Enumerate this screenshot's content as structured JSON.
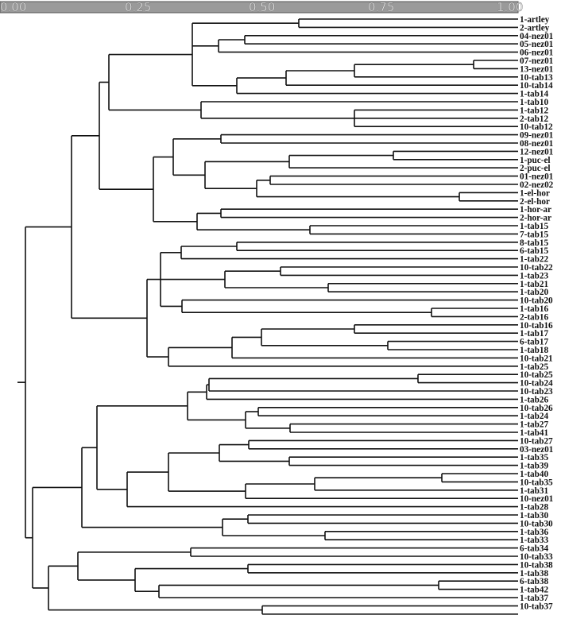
{
  "scale": {
    "ticks": [
      "0.00",
      "0.25",
      "0.50",
      "0.75",
      "1.00"
    ]
  },
  "leaves": [
    "1-artley",
    "2-artley",
    "04-nez01",
    "05-nez01",
    "06-nez01",
    "07-nez01",
    "13-nez01",
    "10-tab13",
    "10-tab14",
    "1-tab14",
    "1-tab10",
    "1-tab12",
    "2-tab12",
    "10-tab12",
    "09-nez01",
    "08-nez01",
    "12-nez01",
    "1-puc-el",
    "2-puc-el",
    "01-nez01",
    "02-nez02",
    "1-el-hor",
    "2-el-hor",
    "1-hor-ar",
    "2-hor-ar",
    "1-tab15",
    "7-tab15",
    "8-tab15",
    "6-tab15",
    "1-tab22",
    "10-tab22",
    "1-tab23",
    "1-tab21",
    "1-tab20",
    "10-tab20",
    "1-tab16",
    "2-tab16",
    "10-tab16",
    "1-tab17",
    "6-tab17",
    "1-tab18",
    "10-tab21",
    "1-tab25",
    "10-tab25",
    "10-tab24",
    "10-tab23",
    "1-tab26",
    "10-tab26",
    "1-tab24",
    "1-tab27",
    "1-tab41",
    "10-tab27",
    "03-nez01",
    "1-tab35",
    "1-tab39",
    "1-tab40",
    "10-tab35",
    "1-tab31",
    "10-nez01",
    "1-tab28",
    "1-tab30",
    "10-tab30",
    "1-tab36",
    "1-tab33",
    "6-tab34",
    "10-tab33",
    "10-tab38",
    "1-tab38",
    "6-tab38",
    "1-tab42",
    "1-tab37",
    "10-tab37"
  ]
}
